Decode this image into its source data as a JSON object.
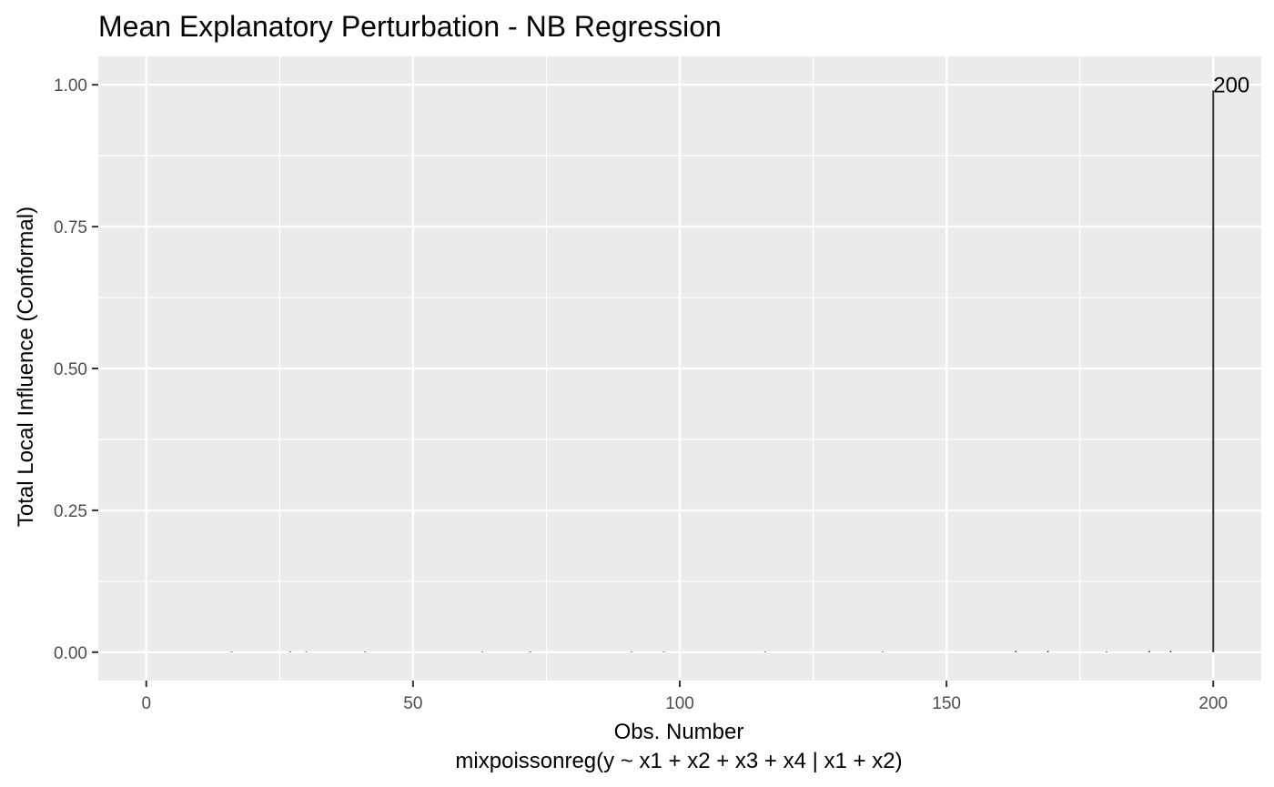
{
  "chart_data": {
    "type": "bar",
    "title": "Mean Explanatory Perturbation - NB Regression",
    "xlabel": "Obs. Number",
    "xlabel_sub": "mixpoissonreg(y ~ x1 + x2 + x3 + x4 | x1 + x2)",
    "ylabel": "Total Local Influence (Conformal)",
    "xlim": [
      -9,
      209
    ],
    "ylim": [
      -0.05,
      1.05
    ],
    "x_ticks": [
      0,
      50,
      100,
      150,
      200
    ],
    "x_tick_labels": [
      "0",
      "50",
      "100",
      "150",
      "200"
    ],
    "y_ticks": [
      0,
      0.25,
      0.5,
      0.75,
      1.0
    ],
    "y_tick_labels": [
      "0.00",
      "0.25",
      "0.50",
      "0.75",
      "1.00"
    ],
    "grid": true,
    "panel_color": "#ebebeb",
    "bar_color": "#333333",
    "series": [
      {
        "x": [
          16,
          27,
          30,
          41,
          63,
          72,
          91,
          97,
          116,
          138,
          163,
          169,
          180,
          188,
          192,
          200
        ],
        "values": [
          0.001,
          0.001,
          0.001,
          0.001,
          0.001,
          0.001,
          0.001,
          0.001,
          0.001,
          0.001,
          0.002,
          0.002,
          0.001,
          0.002,
          0.002,
          0.99
        ]
      }
    ],
    "annotations": [
      {
        "x": 200,
        "y": 0.99,
        "text": "200"
      }
    ]
  }
}
